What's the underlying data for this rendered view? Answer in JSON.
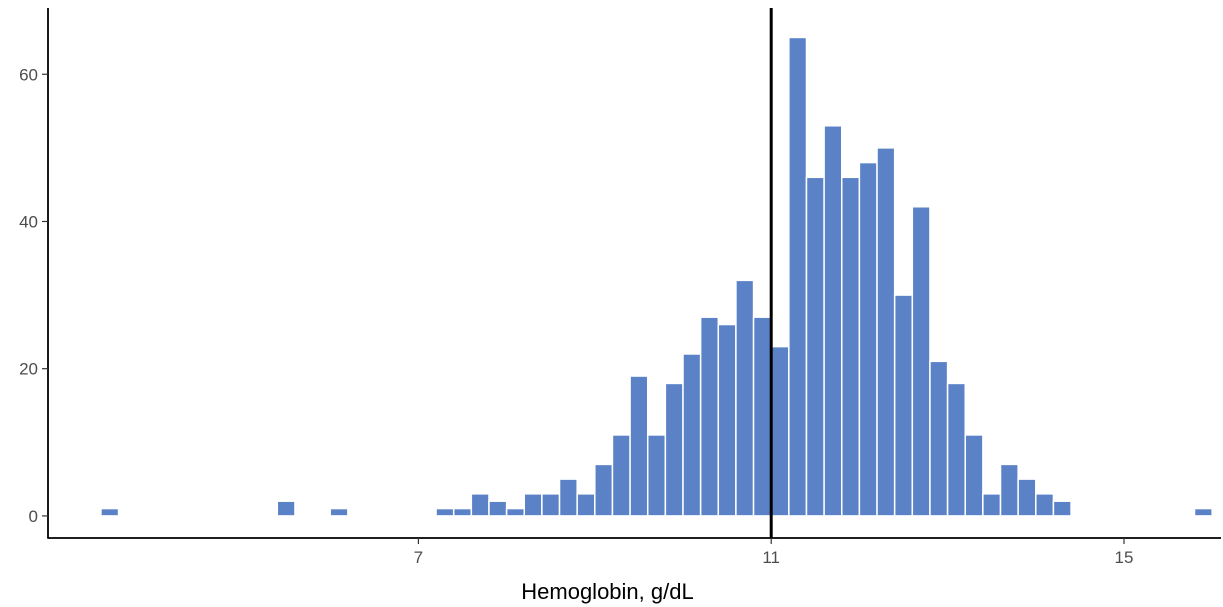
{
  "chart_data": {
    "type": "bar",
    "xlabel": "Hemoglobin, g/dL",
    "ylabel": "",
    "x_ticks": [
      7,
      11,
      15
    ],
    "y_ticks": [
      0,
      20,
      40,
      60
    ],
    "xlim": [
      2.8,
      16.1
    ],
    "ylim": [
      -3,
      69
    ],
    "bin_width": 0.2,
    "reference_line_x": 11,
    "grid": false,
    "bins": [
      {
        "x": 3.5,
        "count": 1
      },
      {
        "x": 5.5,
        "count": 2
      },
      {
        "x": 6.1,
        "count": 1
      },
      {
        "x": 7.3,
        "count": 1
      },
      {
        "x": 7.5,
        "count": 1
      },
      {
        "x": 7.7,
        "count": 3
      },
      {
        "x": 7.9,
        "count": 2
      },
      {
        "x": 8.1,
        "count": 1
      },
      {
        "x": 8.3,
        "count": 3
      },
      {
        "x": 8.5,
        "count": 3
      },
      {
        "x": 8.7,
        "count": 5
      },
      {
        "x": 8.9,
        "count": 3
      },
      {
        "x": 9.1,
        "count": 7
      },
      {
        "x": 9.3,
        "count": 11
      },
      {
        "x": 9.5,
        "count": 19
      },
      {
        "x": 9.7,
        "count": 11
      },
      {
        "x": 9.9,
        "count": 18
      },
      {
        "x": 10.1,
        "count": 22
      },
      {
        "x": 10.3,
        "count": 27
      },
      {
        "x": 10.5,
        "count": 26
      },
      {
        "x": 10.7,
        "count": 32
      },
      {
        "x": 10.9,
        "count": 27
      },
      {
        "x": 11.1,
        "count": 23
      },
      {
        "x": 11.3,
        "count": 65
      },
      {
        "x": 11.5,
        "count": 46
      },
      {
        "x": 11.7,
        "count": 53
      },
      {
        "x": 11.9,
        "count": 46
      },
      {
        "x": 12.1,
        "count": 48
      },
      {
        "x": 12.3,
        "count": 50
      },
      {
        "x": 12.5,
        "count": 30
      },
      {
        "x": 12.7,
        "count": 42
      },
      {
        "x": 12.9,
        "count": 21
      },
      {
        "x": 13.1,
        "count": 18
      },
      {
        "x": 13.3,
        "count": 11
      },
      {
        "x": 13.5,
        "count": 3
      },
      {
        "x": 13.7,
        "count": 7
      },
      {
        "x": 13.9,
        "count": 5
      },
      {
        "x": 14.1,
        "count": 3
      },
      {
        "x": 14.3,
        "count": 2
      },
      {
        "x": 15.9,
        "count": 1
      }
    ],
    "colors": {
      "bar_fill": "#5b82c6",
      "bar_stroke": "#ffffff",
      "axis": "#000000",
      "tick_label": "#4d4d4d",
      "reference_line": "#000000"
    }
  }
}
